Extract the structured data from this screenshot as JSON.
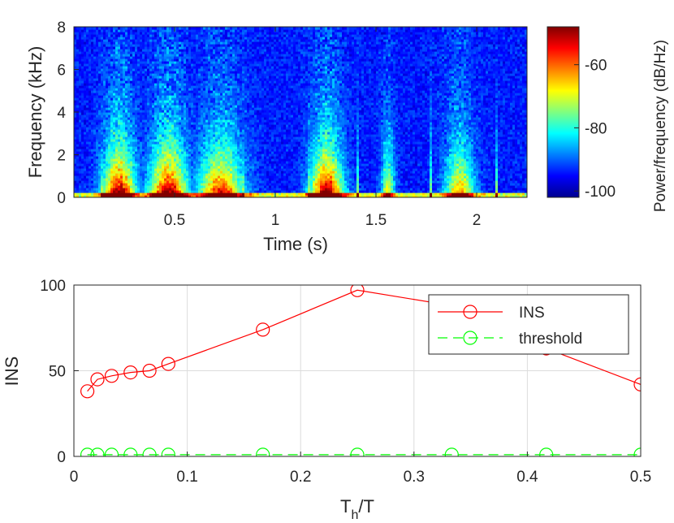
{
  "chart_data": [
    {
      "type": "heatmap",
      "xlabel": "Time (s)",
      "ylabel": "Frequency (kHz)",
      "xlim": [
        0,
        2.25
      ],
      "ylim": [
        0,
        8
      ],
      "xticks": [
        "0.5",
        "1",
        "1.5",
        "2"
      ],
      "xtick_values": [
        0.5,
        1,
        1.5,
        2
      ],
      "yticks": [
        "0",
        "2",
        "4",
        "6",
        "8"
      ],
      "ytick_values": [
        0,
        2,
        4,
        6,
        8
      ],
      "colorbar": {
        "label": "Power/frequency (dB/Hz)",
        "range": [
          -102,
          -48
        ],
        "ticks": [
          "-60",
          "-80",
          "-100"
        ],
        "tick_values": [
          -60,
          -80,
          -100
        ],
        "colormap": "jet"
      },
      "speech_segments": [
        {
          "start": 0.13,
          "end": 0.32,
          "peak": 1.0
        },
        {
          "start": 0.36,
          "end": 0.58,
          "peak": 1.0
        },
        {
          "start": 0.6,
          "end": 0.86,
          "peak": 0.85
        },
        {
          "start": 1.16,
          "end": 1.35,
          "peak": 1.0
        },
        {
          "start": 1.52,
          "end": 1.6,
          "peak": 0.55
        },
        {
          "start": 1.83,
          "end": 2.0,
          "peak": 0.7
        }
      ]
    },
    {
      "type": "line",
      "xlabel_main": "T",
      "xlabel_sub": "h",
      "xlabel_tail": "/T",
      "ylabel": "INS",
      "xlim": [
        0,
        0.5
      ],
      "ylim": [
        0,
        100
      ],
      "xticks": [
        "0",
        "0.1",
        "0.2",
        "0.3",
        "0.4",
        "0.5"
      ],
      "xtick_values": [
        0,
        0.1,
        0.2,
        0.3,
        0.4,
        0.5
      ],
      "yticks": [
        "0",
        "50",
        "100"
      ],
      "ytick_values": [
        0,
        50,
        100
      ],
      "grid": true,
      "legend_position": "top-right",
      "series": [
        {
          "name": "INS",
          "color": "#ff0000",
          "style": "solid",
          "marker": "circle",
          "x": [
            0.0119,
            0.0208,
            0.0333,
            0.05,
            0.0667,
            0.0833,
            0.1667,
            0.25,
            0.3333,
            0.4167,
            0.5
          ],
          "y": [
            38,
            45,
            47,
            49,
            50,
            54,
            74,
            97,
            88,
            63,
            42
          ]
        },
        {
          "name": "threshold",
          "color": "#00ff00",
          "style": "dashed",
          "marker": "circle",
          "x": [
            0.0119,
            0.0208,
            0.0333,
            0.05,
            0.0667,
            0.0833,
            0.1667,
            0.25,
            0.3333,
            0.4167,
            0.5
          ],
          "y": [
            1,
            1,
            1,
            1,
            1,
            1,
            1,
            1,
            1,
            1,
            1
          ]
        }
      ]
    }
  ]
}
